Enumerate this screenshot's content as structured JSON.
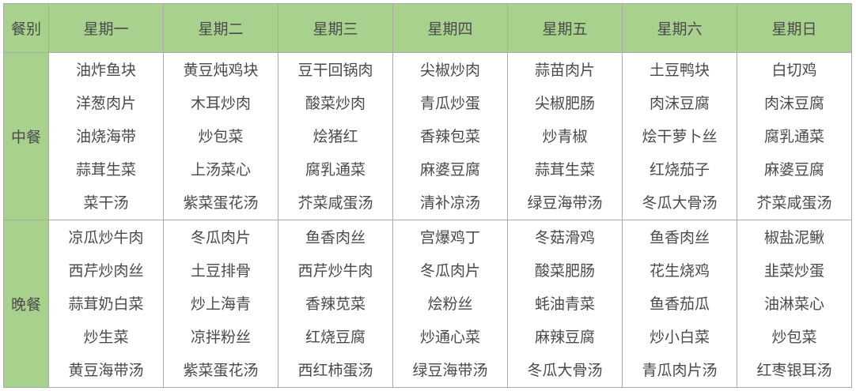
{
  "header": {
    "corner": "餐别",
    "days": [
      "星期一",
      "星期二",
      "星期三",
      "星期四",
      "星期五",
      "星期六",
      "星期日"
    ]
  },
  "colors": {
    "header_bg": "#a9d18e",
    "text": "#4a4a4a",
    "border": "#aaaaaa"
  },
  "meals": [
    {
      "label": "中餐",
      "days": [
        [
          "油炸鱼块",
          "洋葱肉片",
          "油烧海带",
          "蒜茸生菜",
          "菜干汤"
        ],
        [
          "黄豆炖鸡块",
          "木耳炒肉",
          "炒包菜",
          "上汤菜心",
          "紫菜蛋花汤"
        ],
        [
          "豆干回锅肉",
          "酸菜炒肉",
          "烩猪红",
          "腐乳通菜",
          "芥菜咸蛋汤"
        ],
        [
          "尖椒炒肉",
          "青瓜炒蛋",
          "香辣包菜",
          "麻婆豆腐",
          "清补凉汤"
        ],
        [
          "蒜苗肉片",
          "尖椒肥肠",
          "炒青椒",
          "蒜茸生菜",
          "绿豆海带汤"
        ],
        [
          "土豆鸭块",
          "肉沫豆腐",
          "烩干萝卜丝",
          "红烧茄子",
          "冬瓜大骨汤"
        ],
        [
          "白切鸡",
          "肉沫豆腐",
          "腐乳通菜",
          "麻婆豆腐",
          "芥菜咸蛋汤"
        ]
      ]
    },
    {
      "label": "晚餐",
      "days": [
        [
          "凉瓜炒牛肉",
          "西芹炒肉丝",
          "蒜茸奶白菜",
          "炒生菜",
          "黄豆海带汤"
        ],
        [
          "冬瓜肉片",
          "土豆排骨",
          "炒上海青",
          "凉拌粉丝",
          "紫菜蛋花汤"
        ],
        [
          "鱼香肉丝",
          "西芹炒牛肉",
          "香辣苋菜",
          "红烧豆腐",
          "西红柿蛋汤"
        ],
        [
          "宫爆鸡丁",
          "冬瓜肉片",
          "烩粉丝",
          "炒通心菜",
          "绿豆海带汤"
        ],
        [
          "冬菇滑鸡",
          "酸菜肥肠",
          "蚝油青菜",
          "麻辣豆腐",
          "冬瓜大骨汤"
        ],
        [
          "鱼香肉丝",
          "花生烧鸡",
          "鱼香茄瓜",
          "炒小白菜",
          "青瓜肉片汤"
        ],
        [
          "椒盐泥鳅",
          "韭菜炒蛋",
          "油淋菜心",
          "炒包菜",
          "红枣银耳汤"
        ]
      ]
    }
  ]
}
